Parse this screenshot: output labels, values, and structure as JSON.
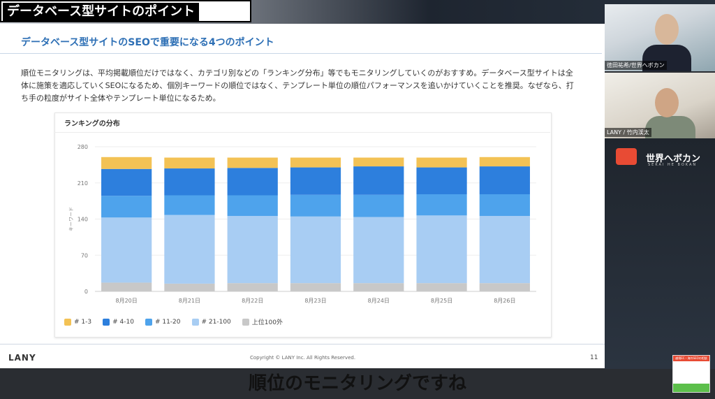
{
  "video": {
    "title_banner": "データベース型サイトのポイント",
    "subtitle": "順位のモニタリングですね"
  },
  "slide": {
    "heading": "データベース型サイトのSEOで重要になる4つのポイント",
    "paragraph": "順位モニタリングは、平均掲載順位だけではなく、カテゴリ別などの「ランキング分布」等でもモニタリングしていくのがおすすめ。データベース型サイトは全体に施策を適応していくSEOになるため、個別キーワードの順位ではなく、テンプレート単位の順位パフォーマンスを追いかけていくことを推奨。なぜなら、打ち手の粒度がサイト全体やテンプレート単位になるため。",
    "chart_panel_title": "ランキングの分布",
    "footer_logo": "LANY",
    "footer_copyright": "Copyright © LANY Inc. All Rights Reserved.",
    "page_number": "11"
  },
  "chart_data": {
    "type": "bar",
    "stacked": true,
    "title": "ランキングの分布",
    "ylabel": "キーワード",
    "xlabel": "",
    "ylim": [
      0,
      280
    ],
    "yticks": [
      0,
      70,
      140,
      210,
      280
    ],
    "grid": true,
    "legend_position": "bottom-left",
    "categories": [
      "8月20日",
      "8月21日",
      "8月22日",
      "8月23日",
      "8月24日",
      "8月25日",
      "8月26日"
    ],
    "series": [
      {
        "name": "上位100外",
        "color": "#c8c8c8",
        "values": [
          17,
          15,
          16,
          16,
          16,
          16,
          16
        ]
      },
      {
        "name": "# 21-100",
        "color": "#a8cdf3",
        "values": [
          126,
          133,
          130,
          129,
          128,
          131,
          130
        ]
      },
      {
        "name": "# 11-20",
        "color": "#4ea3ec",
        "values": [
          42,
          38,
          40,
          42,
          43,
          41,
          42
        ]
      },
      {
        "name": "# 4-10",
        "color": "#2d7fdd",
        "values": [
          52,
          52,
          53,
          53,
          55,
          52,
          54
        ]
      },
      {
        "name": "# 1-3",
        "color": "#f3c255",
        "values": [
          23,
          21,
          20,
          19,
          17,
          19,
          18
        ]
      }
    ],
    "legend_order": [
      "# 1-3",
      "# 4-10",
      "# 11-20",
      "# 21-100",
      "上位100外"
    ]
  },
  "cameras": [
    {
      "label": "徳田祐希/世界へボカン"
    },
    {
      "label": "LANY / 竹内渓太"
    }
  ],
  "brand": {
    "name": "世界へボカン",
    "sub": "SEKAI HE BOKAN",
    "thumb_text": "越境EC・海外SEOの相談"
  }
}
